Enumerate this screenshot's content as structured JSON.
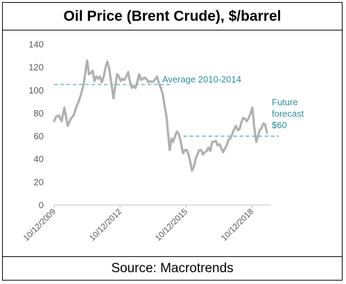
{
  "title": "Oil Price (Brent Crude), $/barrel",
  "source": "Source: Macrotrends",
  "colors": {
    "line": "#b0b0b0",
    "reference": "#4aa7ad",
    "annotation": "#2f8f96",
    "axis": "#595959"
  },
  "chart_data": {
    "type": "line",
    "title": "Oil Price (Brent Crude), $/barrel",
    "xlabel": "",
    "ylabel": "",
    "ylim": [
      0,
      140
    ],
    "yticks": [
      0,
      20,
      40,
      60,
      80,
      100,
      120,
      140
    ],
    "xlim": [
      "2009-10-12",
      "2019-07-01"
    ],
    "xticks": [
      "10/12/2009",
      "10/12/2012",
      "10/12/2015",
      "10/12/2018"
    ],
    "grid": false,
    "legend": "none",
    "series": [
      {
        "x": [
          "2009-10-12",
          "2009-11-15",
          "2010-01-01",
          "2010-02-15",
          "2010-04-01",
          "2010-05-25",
          "2010-07-15",
          "2010-09-01",
          "2010-10-15",
          "2010-12-01",
          "2011-01-10",
          "2011-02-15",
          "2011-03-15",
          "2011-04-15",
          "2011-05-15",
          "2011-06-15",
          "2011-07-15",
          "2011-08-15",
          "2011-09-15",
          "2011-10-15",
          "2011-11-15",
          "2011-12-15",
          "2012-01-15",
          "2012-02-15",
          "2012-03-15",
          "2012-04-15",
          "2012-05-15",
          "2012-06-25",
          "2012-07-25",
          "2012-08-25",
          "2012-09-25",
          "2012-10-25",
          "2012-11-25",
          "2012-12-25",
          "2013-01-25",
          "2013-02-25",
          "2013-03-25",
          "2013-04-25",
          "2013-05-25",
          "2013-06-25",
          "2013-07-25",
          "2013-08-25",
          "2013-09-25",
          "2013-10-25",
          "2013-11-25",
          "2013-12-25",
          "2014-01-25",
          "2014-02-25",
          "2014-03-25",
          "2014-04-25",
          "2014-05-25",
          "2014-06-20",
          "2014-07-20",
          "2014-08-20",
          "2014-09-20",
          "2014-10-20",
          "2014-11-20",
          "2014-12-20",
          "2015-01-15",
          "2015-02-15",
          "2015-03-15",
          "2015-04-15",
          "2015-05-15",
          "2015-06-15",
          "2015-07-15",
          "2015-08-25",
          "2015-09-25",
          "2015-10-25",
          "2015-11-25",
          "2015-12-25",
          "2016-01-20",
          "2016-02-20",
          "2016-03-20",
          "2016-04-20",
          "2016-05-20",
          "2016-06-20",
          "2016-07-20",
          "2016-08-20",
          "2016-09-20",
          "2016-10-20",
          "2016-11-20",
          "2016-12-20",
          "2017-01-20",
          "2017-02-20",
          "2017-03-20",
          "2017-04-20",
          "2017-05-20",
          "2017-06-20",
          "2017-07-20",
          "2017-08-20",
          "2017-09-20",
          "2017-10-20",
          "2017-11-20",
          "2017-12-20",
          "2018-01-20",
          "2018-02-20",
          "2018-03-20",
          "2018-04-20",
          "2018-05-20",
          "2018-06-20",
          "2018-07-20",
          "2018-08-20",
          "2018-09-20",
          "2018-10-20",
          "2018-11-20",
          "2018-12-24",
          "2019-01-20",
          "2019-02-20",
          "2019-03-20",
          "2019-04-20",
          "2019-05-20",
          "2019-06-20"
        ],
        "values": [
          73,
          77,
          78,
          73,
          85,
          69,
          75,
          78,
          85,
          91,
          98,
          105,
          115,
          126,
          114,
          115,
          117,
          108,
          112,
          110,
          112,
          107,
          112,
          120,
          125,
          119,
          108,
          93,
          104,
          114,
          112,
          108,
          110,
          109,
          112,
          116,
          108,
          102,
          104,
          102,
          107,
          114,
          109,
          110,
          111,
          110,
          107,
          108,
          107,
          108,
          110,
          112,
          106,
          102,
          97,
          87,
          78,
          62,
          48,
          58,
          55,
          60,
          64,
          62,
          56,
          45,
          48,
          48,
          44,
          37,
          30,
          33,
          40,
          44,
          48,
          48,
          44,
          46,
          47,
          50,
          47,
          55,
          55,
          56,
          52,
          53,
          50,
          46,
          49,
          52,
          57,
          58,
          62,
          66,
          69,
          65,
          66,
          72,
          76,
          75,
          73,
          76,
          80,
          85,
          68,
          55,
          60,
          65,
          67,
          71,
          70,
          63
        ]
      }
    ],
    "reference_lines": [
      {
        "label": "Average 2010-2014",
        "value": 105,
        "from": "2009-10-12",
        "to": "2015-03-01"
      },
      {
        "label": "Future forecast $60",
        "value": 60,
        "from": "2015-09-01",
        "to": "2020-01-01"
      }
    ],
    "annotations": {
      "average": "Average 2010-2014",
      "forecast": [
        "Future",
        "forecast",
        "$60"
      ]
    }
  }
}
